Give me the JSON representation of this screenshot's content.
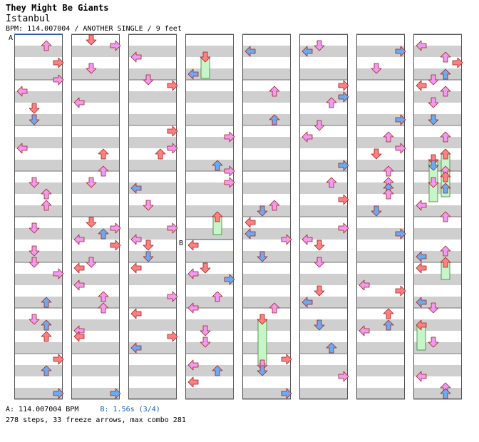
{
  "song": {
    "artist": "They Might Be Giants",
    "title": "Istanbul",
    "bpm_line": "BPM: 114.007004 / ANOTHER SINGLE / 9 feet"
  },
  "footer": {
    "bpm_a": "A: 114.007004 BPM",
    "bpm_b": "B: 1.56s (3/4)",
    "stats": "278 steps, 33 freeze arrows, max combo 281"
  },
  "markers": {
    "a": "A",
    "b": "B"
  },
  "colors": {
    "quarter": "#ff8080",
    "eighth": "#6aaaf0",
    "sixteenth": "#f09af0",
    "freeze": "#c8f5c8",
    "stripe": "#cfcfcf",
    "accent_b": "#1a5fb4"
  },
  "chart_notes": "hardcoded-pattern"
}
